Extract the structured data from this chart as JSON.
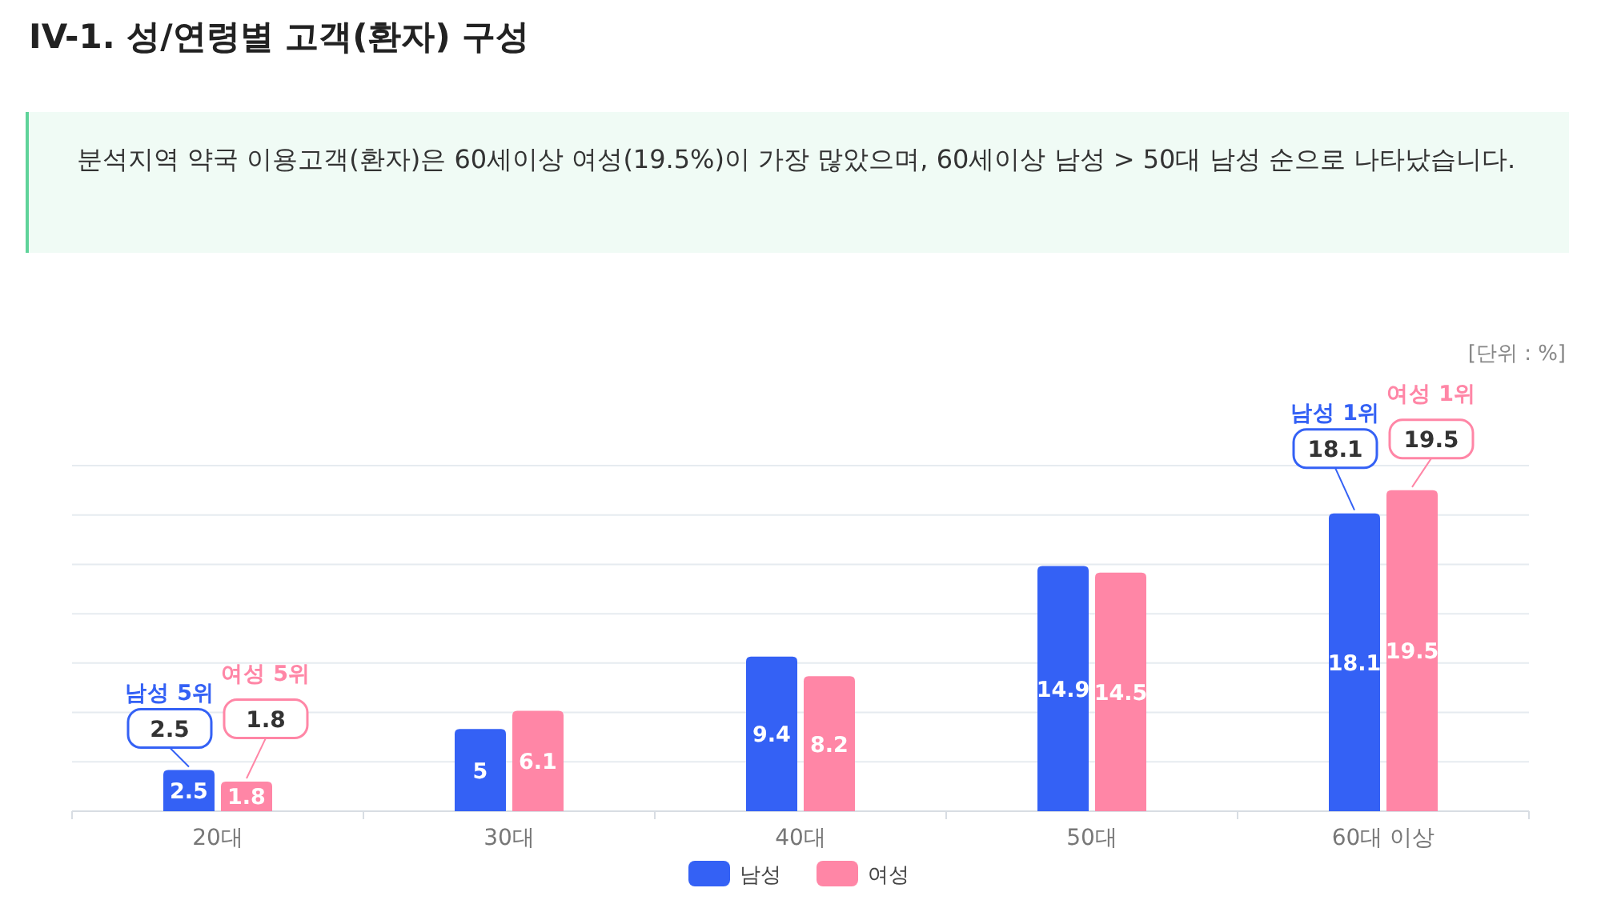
{
  "chart_data": {
    "type": "bar",
    "title": "IV-1. 성/연령별 고객(환자) 구성",
    "subtitle": "분석지역 약국 이용고객(환자)은 60세이상 여성(19.5%)이 가장 많았으며, 60세이상 남성 > 50대 남성 순으로 나타났습니다.",
    "categories": [
      "20대",
      "30대",
      "40대",
      "50대",
      "60대 이상"
    ],
    "series": [
      {
        "name": "남성",
        "color": "#3461f5",
        "values": [
          2.5,
          5,
          9.4,
          14.9,
          18.1
        ]
      },
      {
        "name": "여성",
        "color": "#ff86a6",
        "values": [
          1.8,
          6.1,
          8.2,
          14.5,
          19.5
        ]
      }
    ],
    "ylim": [
      0,
      21
    ],
    "yticks": [
      {
        "value": 3,
        "label": null
      },
      {
        "value": 6,
        "label": null
      },
      {
        "value": 9,
        "label": null
      },
      {
        "value": 12,
        "label": null
      },
      {
        "value": 15,
        "label": null
      },
      {
        "value": 18,
        "label": null
      },
      {
        "value": 21,
        "label": null
      }
    ],
    "grid": "y",
    "tick_labels": "x",
    "data_labels": true,
    "legend": "bottom",
    "annotations": [
      "남성 5위",
      {
        "text": "2.5",
        "x": "20대",
        "y": 2.5
      },
      "여성 5위",
      {
        "text": "1.8",
        "x": "20대",
        "y": 1.8
      },
      "남성 1위",
      {
        "text": "18.1",
        "x": "60대 이상",
        "y": 18.1
      },
      "여성 1위",
      {
        "text": "19.5",
        "x": "60대 이상",
        "y": 19.5
      },
      "[단위 : %]"
    ]
  }
}
